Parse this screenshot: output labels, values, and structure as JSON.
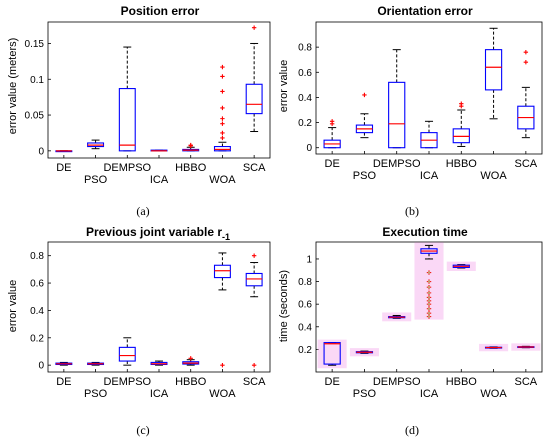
{
  "chart_data": [
    {
      "type": "boxplot",
      "id": "a",
      "title": "Position error",
      "ylabel": "error value (meters)",
      "caption": "(a)",
      "ylim": [
        -0.01,
        0.18
      ],
      "yticks": [
        0,
        0.05,
        0.1,
        0.15
      ],
      "ytick_labels": [
        "0",
        "0.05",
        "0.1",
        "0.15"
      ],
      "categories": [
        "DE",
        "PSO",
        "DEMPSO",
        "ICA",
        "HBBO",
        "WOA",
        "SCA"
      ],
      "boxes": [
        {
          "min": 0,
          "q1": 0,
          "median": 0,
          "q3": 0,
          "max": 0,
          "outliers": []
        },
        {
          "min": 0.003,
          "q1": 0.006,
          "median": 0.008,
          "q3": 0.011,
          "max": 0.015,
          "outliers": []
        },
        {
          "min": 0,
          "q1": 0,
          "median": 0.008,
          "q3": 0.087,
          "max": 0.145,
          "outliers": []
        },
        {
          "min": 0,
          "q1": 0,
          "median": 0,
          "q3": 0.001,
          "max": 0.001,
          "outliers": []
        },
        {
          "min": 0,
          "q1": 0,
          "median": 0.001,
          "q3": 0.002,
          "max": 0.005,
          "outliers": [
            0.007,
            0.008
          ]
        },
        {
          "min": 0,
          "q1": 0,
          "median": 0.002,
          "q3": 0.006,
          "max": 0.012,
          "outliers": [
            0.117,
            0.104,
            0.083,
            0.06,
            0.045,
            0.038,
            0.025,
            0.018
          ]
        },
        {
          "min": 0.027,
          "q1": 0.052,
          "median": 0.065,
          "q3": 0.093,
          "max": 0.15,
          "outliers": [
            0.172
          ]
        }
      ]
    },
    {
      "type": "boxplot",
      "id": "b",
      "title": "Orientation error",
      "ylabel": "error value",
      "caption": "(b)",
      "ylim": [
        -0.05,
        1.0
      ],
      "yticks": [
        0,
        0.2,
        0.4,
        0.6,
        0.8
      ],
      "ytick_labels": [
        "0",
        "0.2",
        "0.4",
        "0.6",
        "0.8"
      ],
      "categories": [
        "DE",
        "PSO",
        "DEMPSO",
        "ICA",
        "HBBO",
        "WOA",
        "SCA"
      ],
      "boxes": [
        {
          "min": 0,
          "q1": 0.0,
          "median": 0.03,
          "q3": 0.06,
          "max": 0.16,
          "outliers": [
            0.19,
            0.21
          ]
        },
        {
          "min": 0.08,
          "q1": 0.12,
          "median": 0.15,
          "q3": 0.18,
          "max": 0.27,
          "outliers": [
            0.42
          ]
        },
        {
          "min": 0.0,
          "q1": 0.0,
          "median": 0.19,
          "q3": 0.52,
          "max": 0.78,
          "outliers": []
        },
        {
          "min": 0.0,
          "q1": 0.0,
          "median": 0.06,
          "q3": 0.12,
          "max": 0.21,
          "outliers": []
        },
        {
          "min": 0.01,
          "q1": 0.04,
          "median": 0.09,
          "q3": 0.15,
          "max": 0.3,
          "outliers": [
            0.33,
            0.35
          ]
        },
        {
          "min": 0.23,
          "q1": 0.46,
          "median": 0.64,
          "q3": 0.78,
          "max": 0.95,
          "outliers": []
        },
        {
          "min": 0.08,
          "q1": 0.15,
          "median": 0.24,
          "q3": 0.33,
          "max": 0.48,
          "outliers": [
            0.68,
            0.76
          ]
        }
      ]
    },
    {
      "type": "boxplot",
      "id": "c",
      "title": "Previous joint variable r",
      "title_sub": "-1",
      "ylabel": "error value",
      "caption": "(c)",
      "ylim": [
        -0.05,
        0.9
      ],
      "yticks": [
        0,
        0.2,
        0.4,
        0.6,
        0.8
      ],
      "ytick_labels": [
        "0",
        "0.2",
        "0.4",
        "0.6",
        "0.8"
      ],
      "categories": [
        "DE",
        "PSO",
        "DEMPSO",
        "ICA",
        "HBBO",
        "WOA",
        "SCA"
      ],
      "boxes": [
        {
          "min": 0.0,
          "q1": 0.005,
          "median": 0.01,
          "q3": 0.015,
          "max": 0.02,
          "outliers": []
        },
        {
          "min": 0.0,
          "q1": 0.005,
          "median": 0.01,
          "q3": 0.015,
          "max": 0.02,
          "outliers": []
        },
        {
          "min": 0.0,
          "q1": 0.03,
          "median": 0.07,
          "q3": 0.13,
          "max": 0.2,
          "outliers": []
        },
        {
          "min": 0.0,
          "q1": 0.005,
          "median": 0.01,
          "q3": 0.02,
          "max": 0.03,
          "outliers": []
        },
        {
          "min": 0.0,
          "q1": 0.008,
          "median": 0.015,
          "q3": 0.025,
          "max": 0.04,
          "outliers": [
            0.05
          ]
        },
        {
          "min": 0.55,
          "q1": 0.64,
          "median": 0.69,
          "q3": 0.73,
          "max": 0.82,
          "outliers": [
            0.0
          ]
        },
        {
          "min": 0.5,
          "q1": 0.58,
          "median": 0.63,
          "q3": 0.67,
          "max": 0.75,
          "outliers": [
            0.8,
            0.0
          ]
        }
      ]
    },
    {
      "type": "boxplot",
      "id": "d",
      "title": "Execution time",
      "ylabel": "time (seconds)",
      "caption": "(d)",
      "ylim": [
        0,
        1.15
      ],
      "yticks": [
        0.2,
        0.4,
        0.6,
        0.8,
        1
      ],
      "ytick_labels": [
        "0.2",
        "0.4",
        "0.6",
        "0.8",
        "1"
      ],
      "categories": [
        "DE",
        "PSO",
        "DEMPSO",
        "ICA",
        "HBBO",
        "WOA",
        "SCA"
      ],
      "boxes": [
        {
          "min": 0.06,
          "q1": 0.07,
          "median": 0.25,
          "q3": 0.26,
          "max": 0.26,
          "outliers": []
        },
        {
          "min": 0.165,
          "q1": 0.17,
          "median": 0.175,
          "q3": 0.18,
          "max": 0.185,
          "outliers": []
        },
        {
          "min": 0.475,
          "q1": 0.48,
          "median": 0.485,
          "q3": 0.49,
          "max": 0.5,
          "outliers": []
        },
        {
          "min": 1.0,
          "q1": 1.05,
          "median": 1.07,
          "q3": 1.09,
          "max": 1.12,
          "outliers": [
            0.88,
            0.8,
            0.75,
            0.7,
            0.66,
            0.63,
            0.6,
            0.56,
            0.52,
            0.49
          ]
        },
        {
          "min": 0.92,
          "q1": 0.925,
          "median": 0.935,
          "q3": 0.945,
          "max": 0.95,
          "outliers": []
        },
        {
          "min": 0.21,
          "q1": 0.213,
          "median": 0.216,
          "q3": 0.219,
          "max": 0.222,
          "outliers": []
        },
        {
          "min": 0.215,
          "q1": 0.218,
          "median": 0.221,
          "q3": 0.224,
          "max": 0.227,
          "outliers": []
        }
      ]
    }
  ],
  "colors": {
    "box": "#0000ff",
    "median": "#ff0000",
    "whisker": "#000000",
    "outlier": "#ff0000",
    "outlier_fill": "#c0a070",
    "highlight": "#f5b8ee"
  }
}
